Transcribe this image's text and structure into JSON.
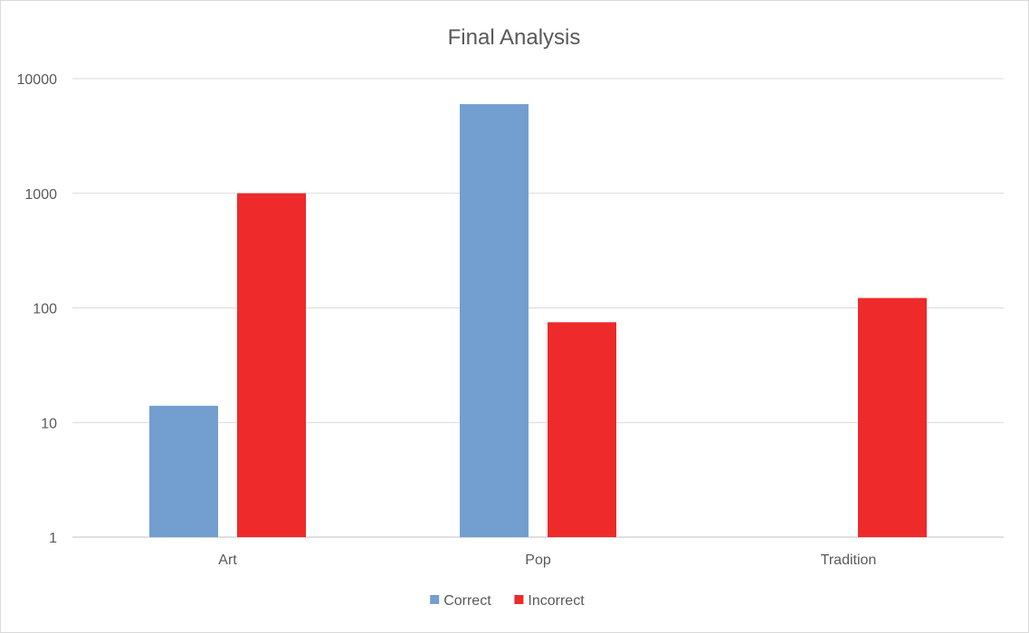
{
  "chart_data": {
    "type": "bar",
    "title": "Final Analysis",
    "xlabel": "",
    "ylabel": "",
    "y_scale": "log",
    "ylim": [
      1,
      10000
    ],
    "y_ticks": [
      "1",
      "10",
      "100",
      "1000",
      "10000"
    ],
    "categories": [
      "Art",
      "Pop",
      "Tradition"
    ],
    "series": [
      {
        "name": "Correct",
        "color": "#729fcf",
        "values": [
          14,
          6000,
          null
        ]
      },
      {
        "name": "Incorrect",
        "color": "#ee2a2a",
        "values": [
          1000,
          75,
          122
        ]
      }
    ],
    "grid": true,
    "legend_position": "bottom"
  }
}
